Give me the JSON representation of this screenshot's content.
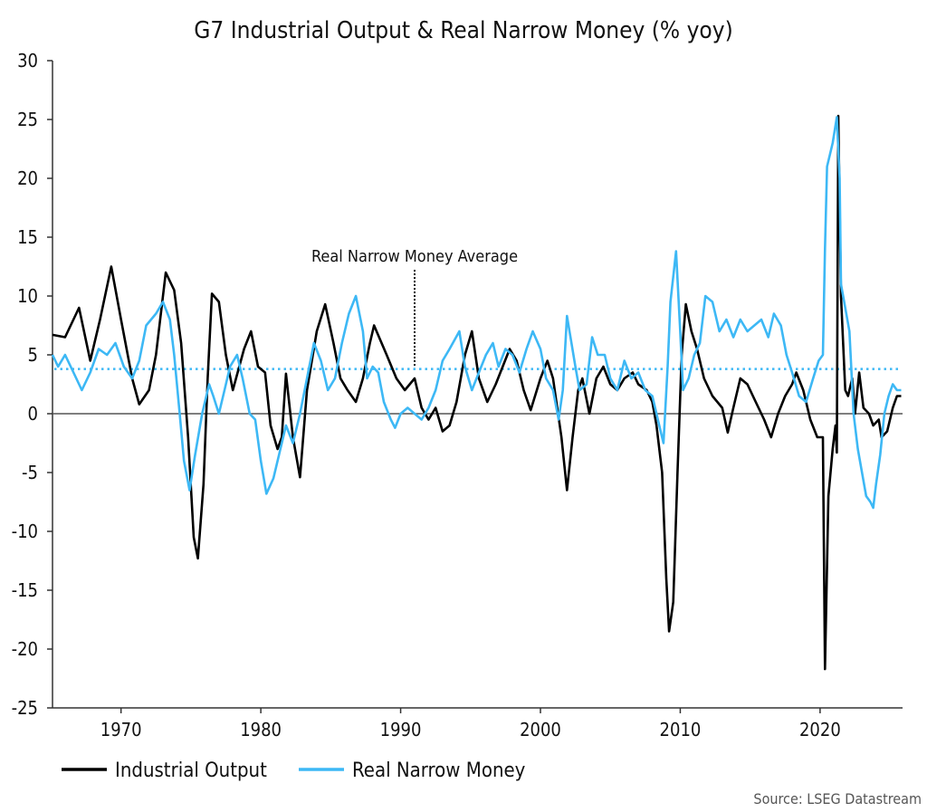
{
  "chart_data": {
    "type": "line",
    "title": "G7 Industrial Output & Real Narrow Money (% yoy)",
    "xlabel": "",
    "ylabel": "",
    "xlim": [
      1965.1,
      2025.9
    ],
    "ylim": [
      -25,
      30
    ],
    "x_ticks": [
      "1970",
      "1980",
      "1990",
      "2000",
      "2010",
      "2020"
    ],
    "y_ticks": [
      "30",
      "25",
      "20",
      "15",
      "10",
      "5",
      "0",
      "-5",
      "-10",
      "-15",
      "-20",
      "-25"
    ],
    "grid": false,
    "legend_position": "bottom-left",
    "zero_line": true,
    "annotation": {
      "text": "Real Narrow Money Average",
      "x": 1991.0,
      "value": 3.8
    },
    "reference_line": {
      "name": "Real Narrow Money Average",
      "value": 3.8,
      "style": "dotted",
      "color": "#3db8f5"
    },
    "source": "Source: LSEG Datastream",
    "series": [
      {
        "name": "Industrial Output",
        "color": "#000000",
        "points": [
          [
            1965.1,
            6.7
          ],
          [
            1966,
            6.5
          ],
          [
            1967,
            9
          ],
          [
            1967.8,
            4.5
          ],
          [
            1968.5,
            8
          ],
          [
            1969.3,
            12.5
          ],
          [
            1970,
            8
          ],
          [
            1970.8,
            3
          ],
          [
            1971.3,
            0.8
          ],
          [
            1972,
            2
          ],
          [
            1972.5,
            5
          ],
          [
            1973.2,
            12
          ],
          [
            1973.8,
            10.5
          ],
          [
            1974.3,
            6
          ],
          [
            1974.8,
            -2
          ],
          [
            1975.2,
            -10.5
          ],
          [
            1975.5,
            -12.3
          ],
          [
            1975.9,
            -6
          ],
          [
            1976.2,
            3
          ],
          [
            1976.5,
            10.2
          ],
          [
            1977,
            9.5
          ],
          [
            1977.5,
            5
          ],
          [
            1978,
            2
          ],
          [
            1978.8,
            5.5
          ],
          [
            1979.3,
            7
          ],
          [
            1979.8,
            4
          ],
          [
            1980.3,
            3.5
          ],
          [
            1980.7,
            -1
          ],
          [
            1981.2,
            -3
          ],
          [
            1981.5,
            -2
          ],
          [
            1981.8,
            3.4
          ],
          [
            1982.3,
            -2
          ],
          [
            1982.8,
            -5.4
          ],
          [
            1983.3,
            2
          ],
          [
            1984,
            7
          ],
          [
            1984.6,
            9.3
          ],
          [
            1985.2,
            6
          ],
          [
            1985.7,
            3
          ],
          [
            1986.2,
            2
          ],
          [
            1986.8,
            1
          ],
          [
            1987.3,
            3
          ],
          [
            1987.8,
            6
          ],
          [
            1988.1,
            7.5
          ],
          [
            1989,
            5
          ],
          [
            1989.7,
            3
          ],
          [
            1990.3,
            2
          ],
          [
            1991,
            3
          ],
          [
            1991.5,
            0.5
          ],
          [
            1992,
            -0.5
          ],
          [
            1992.5,
            0.5
          ],
          [
            1993,
            -1.5
          ],
          [
            1993.5,
            -1
          ],
          [
            1994,
            1
          ],
          [
            1994.6,
            5
          ],
          [
            1995.1,
            7
          ],
          [
            1995.6,
            3
          ],
          [
            1996.2,
            1
          ],
          [
            1996.8,
            2.5
          ],
          [
            1997.3,
            4
          ],
          [
            1997.8,
            5.5
          ],
          [
            1998.3,
            4.5
          ],
          [
            1998.8,
            2
          ],
          [
            1999.3,
            0.3
          ],
          [
            2000,
            3
          ],
          [
            2000.5,
            4.5
          ],
          [
            2000.9,
            3
          ],
          [
            2001.5,
            -2
          ],
          [
            2001.9,
            -6.5
          ],
          [
            2002.3,
            -2
          ],
          [
            2002.7,
            2
          ],
          [
            2003,
            3
          ],
          [
            2003.5,
            0
          ],
          [
            2004,
            3
          ],
          [
            2004.5,
            4
          ],
          [
            2005,
            2.5
          ],
          [
            2005.5,
            2
          ],
          [
            2006,
            3
          ],
          [
            2006.6,
            3.5
          ],
          [
            2007,
            2.5
          ],
          [
            2007.6,
            2
          ],
          [
            2008,
            1
          ],
          [
            2008.3,
            -1
          ],
          [
            2008.7,
            -5
          ],
          [
            2009,
            -14
          ],
          [
            2009.2,
            -18.5
          ],
          [
            2009.5,
            -16
          ],
          [
            2009.8,
            -5
          ],
          [
            2010.1,
            5
          ],
          [
            2010.4,
            9.3
          ],
          [
            2010.8,
            7
          ],
          [
            2011.2,
            5.5
          ],
          [
            2011.7,
            3
          ],
          [
            2012.3,
            1.5
          ],
          [
            2013,
            0.5
          ],
          [
            2013.4,
            -1.6
          ],
          [
            2013.8,
            0.5
          ],
          [
            2014.3,
            3
          ],
          [
            2014.8,
            2.5
          ],
          [
            2015.4,
            1
          ],
          [
            2016,
            -0.5
          ],
          [
            2016.5,
            -2
          ],
          [
            2017,
            0
          ],
          [
            2017.5,
            1.5
          ],
          [
            2018,
            2.5
          ],
          [
            2018.3,
            3.5
          ],
          [
            2018.8,
            2
          ],
          [
            2019.3,
            -0.5
          ],
          [
            2019.8,
            -2
          ],
          [
            2020.2,
            -2
          ],
          [
            2020.35,
            -21.7
          ],
          [
            2020.6,
            -7
          ],
          [
            2020.9,
            -3
          ],
          [
            2021.1,
            -1
          ],
          [
            2021.2,
            -3.3
          ],
          [
            2021.3,
            25.3
          ],
          [
            2021.5,
            10
          ],
          [
            2021.8,
            2
          ],
          [
            2022,
            1.5
          ],
          [
            2022.3,
            3
          ],
          [
            2022.5,
            0
          ],
          [
            2022.8,
            3.5
          ],
          [
            2023.1,
            0.5
          ],
          [
            2023.5,
            0
          ],
          [
            2023.8,
            -1
          ],
          [
            2024.2,
            -0.5
          ],
          [
            2024.4,
            -2
          ],
          [
            2024.8,
            -1.5
          ],
          [
            2025.2,
            0.5
          ],
          [
            2025.5,
            1.5
          ],
          [
            2025.8,
            1.5
          ]
        ]
      },
      {
        "name": "Real Narrow Money",
        "color": "#3db8f5",
        "points": [
          [
            1965.1,
            5
          ],
          [
            1965.5,
            4
          ],
          [
            1966,
            5
          ],
          [
            1966.6,
            3.5
          ],
          [
            1967.2,
            2
          ],
          [
            1967.8,
            3.5
          ],
          [
            1968.4,
            5.5
          ],
          [
            1969,
            5
          ],
          [
            1969.6,
            6
          ],
          [
            1970.2,
            4
          ],
          [
            1970.8,
            3
          ],
          [
            1971.3,
            4.5
          ],
          [
            1971.8,
            7.5
          ],
          [
            1972.5,
            8.5
          ],
          [
            1973,
            9.5
          ],
          [
            1973.5,
            8
          ],
          [
            1973.8,
            5
          ],
          [
            1974.2,
            0
          ],
          [
            1974.5,
            -4
          ],
          [
            1974.9,
            -6.5
          ],
          [
            1975.3,
            -3.5
          ],
          [
            1975.8,
            0
          ],
          [
            1976.3,
            2.5
          ],
          [
            1976.6,
            1.5
          ],
          [
            1977,
            0
          ],
          [
            1977.4,
            2
          ],
          [
            1977.8,
            4
          ],
          [
            1978.3,
            5
          ],
          [
            1978.7,
            3
          ],
          [
            1979.2,
            0
          ],
          [
            1979.6,
            -0.5
          ],
          [
            1980,
            -4
          ],
          [
            1980.4,
            -6.8
          ],
          [
            1980.9,
            -5.5
          ],
          [
            1981.3,
            -3.5
          ],
          [
            1981.8,
            -1
          ],
          [
            1982.3,
            -2.5
          ],
          [
            1982.8,
            0
          ],
          [
            1983.3,
            3
          ],
          [
            1983.8,
            6
          ],
          [
            1984.3,
            4.5
          ],
          [
            1984.8,
            2
          ],
          [
            1985.3,
            3
          ],
          [
            1985.8,
            6
          ],
          [
            1986.3,
            8.5
          ],
          [
            1986.8,
            10
          ],
          [
            1987.3,
            7
          ],
          [
            1987.6,
            3
          ],
          [
            1988,
            4
          ],
          [
            1988.4,
            3.5
          ],
          [
            1988.8,
            1
          ],
          [
            1989.3,
            -0.5
          ],
          [
            1989.6,
            -1.2
          ],
          [
            1990,
            0
          ],
          [
            1990.5,
            0.5
          ],
          [
            1991,
            0
          ],
          [
            1991.5,
            -0.5
          ],
          [
            1992,
            0.5
          ],
          [
            1992.5,
            2
          ],
          [
            1993,
            4.5
          ],
          [
            1993.5,
            5.5
          ],
          [
            1994.2,
            7
          ],
          [
            1994.6,
            4
          ],
          [
            1995.1,
            2
          ],
          [
            1995.6,
            3.5
          ],
          [
            1996.1,
            5
          ],
          [
            1996.6,
            6
          ],
          [
            1997,
            4
          ],
          [
            1997.5,
            5.5
          ],
          [
            1998,
            5
          ],
          [
            1998.5,
            3.5
          ],
          [
            1999,
            5.5
          ],
          [
            1999.45,
            7
          ],
          [
            2000,
            5.5
          ],
          [
            2000.4,
            3
          ],
          [
            2000.9,
            2
          ],
          [
            2001.3,
            -0.5
          ],
          [
            2001.6,
            2
          ],
          [
            2001.9,
            8.3
          ],
          [
            2002.5,
            4
          ],
          [
            2002.8,
            2
          ],
          [
            2003.3,
            2.5
          ],
          [
            2003.7,
            6.5
          ],
          [
            2004.1,
            5
          ],
          [
            2004.6,
            5
          ],
          [
            2005,
            3
          ],
          [
            2005.5,
            2
          ],
          [
            2006,
            4.5
          ],
          [
            2006.5,
            3
          ],
          [
            2007,
            3.5
          ],
          [
            2007.5,
            2
          ],
          [
            2008,
            1.5
          ],
          [
            2008.4,
            -0.5
          ],
          [
            2008.8,
            -2.5
          ],
          [
            2009.1,
            4
          ],
          [
            2009.3,
            9.5
          ],
          [
            2009.7,
            13.8
          ],
          [
            2010,
            7
          ],
          [
            2010.2,
            2
          ],
          [
            2010.6,
            3
          ],
          [
            2011,
            5
          ],
          [
            2011.4,
            6
          ],
          [
            2011.8,
            10
          ],
          [
            2012.3,
            9.5
          ],
          [
            2012.8,
            7
          ],
          [
            2013.3,
            8
          ],
          [
            2013.8,
            6.5
          ],
          [
            2014.3,
            8
          ],
          [
            2014.8,
            7
          ],
          [
            2015.3,
            7.5
          ],
          [
            2015.8,
            8
          ],
          [
            2016.3,
            6.5
          ],
          [
            2016.7,
            8.5
          ],
          [
            2017.2,
            7.5
          ],
          [
            2017.6,
            5
          ],
          [
            2018,
            3.5
          ],
          [
            2018.5,
            1.5
          ],
          [
            2019,
            1
          ],
          [
            2019.5,
            3
          ],
          [
            2019.9,
            4.5
          ],
          [
            2020.2,
            5
          ],
          [
            2020.35,
            14
          ],
          [
            2020.5,
            21
          ],
          [
            2020.9,
            23
          ],
          [
            2021.2,
            25.2
          ],
          [
            2021.4,
            20
          ],
          [
            2021.5,
            11
          ],
          [
            2021.8,
            9
          ],
          [
            2022.1,
            7
          ],
          [
            2022.4,
            0
          ],
          [
            2022.7,
            -3
          ],
          [
            2023,
            -5
          ],
          [
            2023.3,
            -7
          ],
          [
            2023.6,
            -7.5
          ],
          [
            2023.8,
            -8
          ],
          [
            2024,
            -6
          ],
          [
            2024.3,
            -3.5
          ],
          [
            2024.6,
            0
          ],
          [
            2024.9,
            1.5
          ],
          [
            2025.2,
            2.5
          ],
          [
            2025.5,
            2
          ],
          [
            2025.8,
            2
          ]
        ]
      }
    ]
  }
}
